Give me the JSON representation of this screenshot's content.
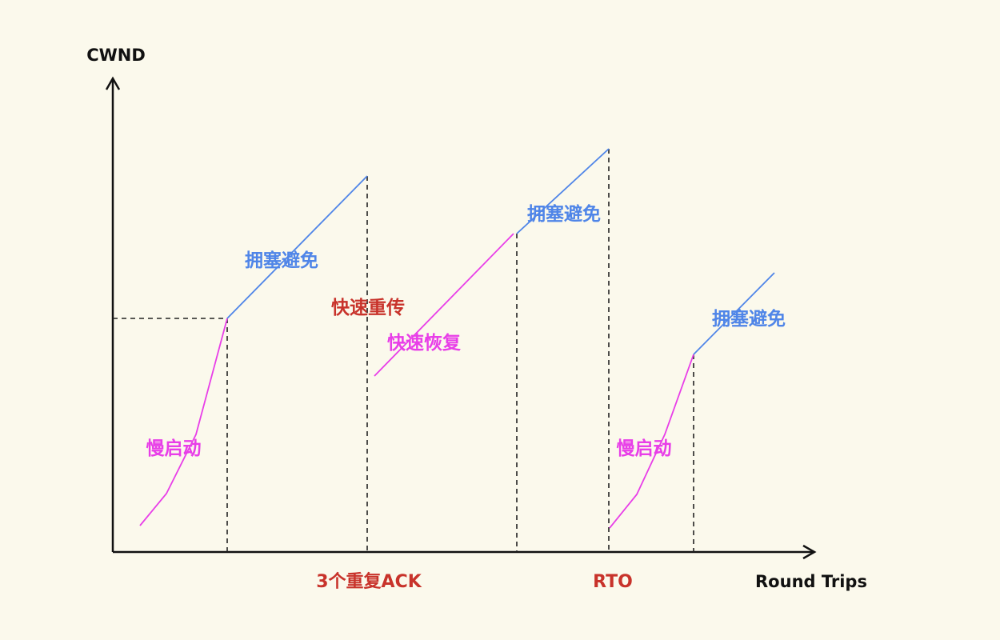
{
  "axes": {
    "y_label": "CWND",
    "x_label": "Round Trips"
  },
  "events": {
    "triple_ack": "3个重复ACK",
    "rto": "RTO"
  },
  "phases": {
    "slow_start_1": "慢启动",
    "congestion_avoidance_1": "拥塞避免",
    "fast_retransmit": "快速重传",
    "fast_recovery": "快速恢复",
    "congestion_avoidance_2": "拥塞避免",
    "slow_start_2": "慢启动",
    "congestion_avoidance_3": "拥塞避免"
  },
  "colors": {
    "slow_start": "#e83ee8",
    "congestion_avoidance": "#4f85e8",
    "fast_recovery": "#e83ee8",
    "event_text": "#c8332b",
    "axis": "#111111",
    "background": "#fbf9ec"
  }
}
